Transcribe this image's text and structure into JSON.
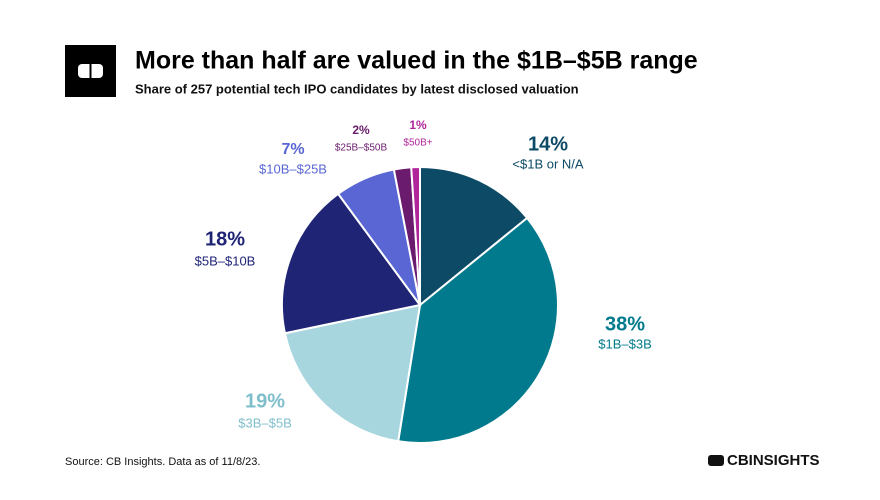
{
  "chart_data": {
    "type": "pie",
    "title": "More than half are valued in the $1B–$5B range",
    "subtitle": "Share of 257 potential tech IPO candidates by latest disclosed valuation",
    "source": "Source: CB Insights. Data as of 11/8/23.",
    "brand": "CBINSIGHTS",
    "categories": [
      "<$1B or N/A",
      "$1B–$3B",
      "$3B–$5B",
      "$5B–$10B",
      "$10B–$25B",
      "$25B–$50B",
      "$50B+"
    ],
    "values": [
      14,
      38,
      19,
      18,
      7,
      2,
      1
    ],
    "value_labels": [
      "14%",
      "38%",
      "19%",
      "18%",
      "7%",
      "2%",
      "1%"
    ],
    "colors": [
      "#0c4a66",
      "#007a8c",
      "#a8d6df",
      "#1f2475",
      "#5a66d4",
      "#6a1b6e",
      "#b0269a"
    ]
  }
}
